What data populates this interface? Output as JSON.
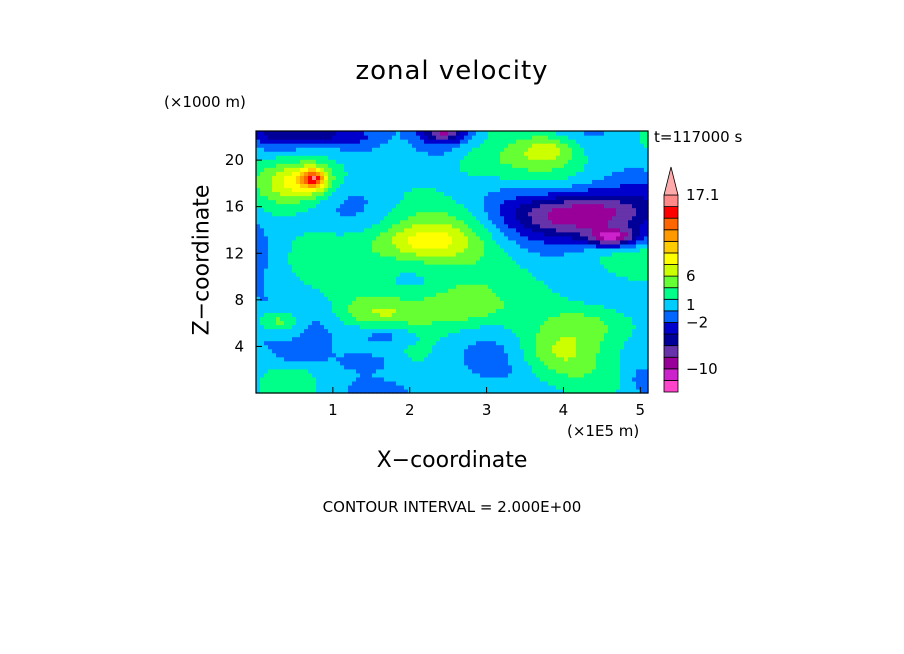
{
  "chart_data": {
    "type": "heatmap",
    "title": "zonal velocity",
    "xlabel": "X−coordinate",
    "ylabel": "Z−coordinate",
    "x_unit": "(×1E5 m)",
    "y_unit": "(×1000 m)",
    "time_label": "t=117000 s",
    "contour_interval": "CONTOUR INTERVAL = 2.000E+00",
    "xlim": [
      0,
      5.1
    ],
    "ylim": [
      0,
      22.5
    ],
    "x_ticks": [
      1,
      2,
      3,
      4,
      5
    ],
    "y_ticks": [
      4,
      8,
      12,
      16,
      20
    ],
    "colorbar_labels": [
      {
        "value": 17.1,
        "text": "17.1"
      },
      {
        "value": 6,
        "text": "6"
      },
      {
        "value": 1,
        "text": "1"
      },
      {
        "value": -2,
        "text": "−2"
      },
      {
        "value": -10,
        "text": "−10"
      }
    ],
    "colorbar_levels": [
      {
        "color": "#ff44cc"
      },
      {
        "color": "#cc22cc"
      },
      {
        "color": "#990099"
      },
      {
        "color": "#6633aa"
      },
      {
        "color": "#000099"
      },
      {
        "color": "#0000cc"
      },
      {
        "color": "#0066ff"
      },
      {
        "color": "#00ccff"
      },
      {
        "color": "#00ff88"
      },
      {
        "color": "#66ff33"
      },
      {
        "color": "#ccff00"
      },
      {
        "color": "#ffff00"
      },
      {
        "color": "#ffcc00"
      },
      {
        "color": "#ff9900"
      },
      {
        "color": "#ff6600"
      },
      {
        "color": "#ff0000"
      },
      {
        "color": "#ff8888"
      },
      {
        "color": "#ffaaaa"
      }
    ],
    "field_blobs": [
      {
        "x": 2.3,
        "z": 11.5,
        "rx": 1.2,
        "rz": 4.5,
        "v": 3
      },
      {
        "x": 2.2,
        "z": 13.0,
        "rx": 0.6,
        "rz": 1.5,
        "v": 5
      },
      {
        "x": 0.6,
        "z": 18.2,
        "rx": 0.45,
        "rz": 1.8,
        "v": 8
      },
      {
        "x": 0.75,
        "z": 18.5,
        "rx": 0.15,
        "rz": 0.8,
        "v": 11
      },
      {
        "x": 1.6,
        "z": 7.0,
        "rx": 0.6,
        "rz": 1.5,
        "v": 4
      },
      {
        "x": 2.6,
        "z": 7.5,
        "rx": 0.5,
        "rz": 1.8,
        "v": 4
      },
      {
        "x": 3.8,
        "z": 21.0,
        "rx": 0.4,
        "rz": 1.4,
        "v": 5
      },
      {
        "x": 4.4,
        "z": 6.0,
        "rx": 0.6,
        "rz": 2.0,
        "v": 5
      },
      {
        "x": 3.9,
        "z": 3.5,
        "rx": 0.5,
        "rz": 2.0,
        "v": 4
      },
      {
        "x": 2.9,
        "z": 20.0,
        "rx": 0.7,
        "rz": 2.0,
        "v": 4
      },
      {
        "x": 0.3,
        "z": 6.2,
        "rx": 0.3,
        "rz": 1.0,
        "v": 5
      },
      {
        "x": 4.3,
        "z": 15.2,
        "rx": 0.8,
        "rz": 1.8,
        "v": -8
      },
      {
        "x": 4.0,
        "z": 16.0,
        "rx": 1.1,
        "rz": 2.2,
        "v": -4
      },
      {
        "x": 4.65,
        "z": 13.4,
        "rx": 0.35,
        "rz": 0.8,
        "v": -10
      },
      {
        "x": 0.75,
        "z": 22.3,
        "rx": 0.8,
        "rz": 1.0,
        "v": -6
      },
      {
        "x": 1.4,
        "z": 21.3,
        "rx": 0.4,
        "rz": 1.5,
        "v": -3
      },
      {
        "x": 2.35,
        "z": 21.2,
        "rx": 0.45,
        "rz": 1.5,
        "v": -2
      },
      {
        "x": 2.45,
        "z": 22.4,
        "rx": 0.3,
        "rz": 0.8,
        "v": -8
      },
      {
        "x": 1.7,
        "z": 5.0,
        "rx": 0.4,
        "rz": 1.2,
        "v": -4
      },
      {
        "x": 1.5,
        "z": 2.8,
        "rx": 0.4,
        "rz": 0.8,
        "v": -2
      },
      {
        "x": 3.3,
        "z": 8.8,
        "rx": 0.5,
        "rz": 1.5,
        "v": -1
      },
      {
        "x": 2.8,
        "z": 3.0,
        "rx": 0.6,
        "rz": 2.5,
        "v": 0
      },
      {
        "x": 0.1,
        "z": 5.0,
        "rx": 0.25,
        "rz": 4.0,
        "v": -1
      },
      {
        "x": 0.55,
        "z": 3.3,
        "rx": 0.3,
        "rz": 0.8,
        "v": -3
      },
      {
        "x": 5.05,
        "z": 14.0,
        "rx": 0.2,
        "rz": 4.0,
        "v": 0
      },
      {
        "x": 5.05,
        "z": 1.2,
        "rx": 0.2,
        "rz": 1.0,
        "v": -2
      },
      {
        "x": 0.0,
        "z": 12.0,
        "rx": 0.15,
        "rz": 6.0,
        "v": -1
      }
    ]
  }
}
